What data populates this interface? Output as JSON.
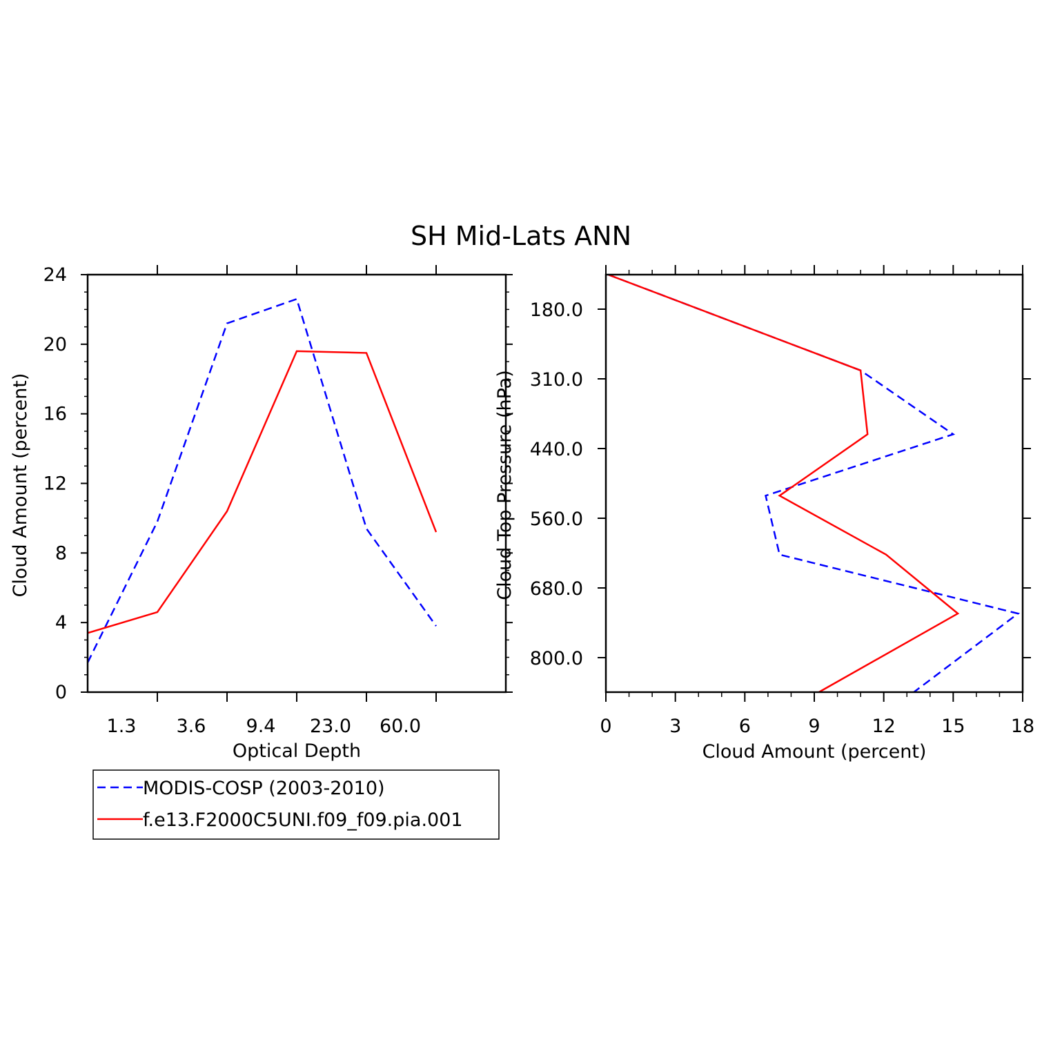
{
  "title": "SH Mid-Lats ANN",
  "colors": {
    "model": "#ff0000",
    "obs": "#0000ff",
    "axis": "#000000"
  },
  "legend": {
    "items": [
      {
        "label": "MODIS-COSP (2003-2010)",
        "series": "obs",
        "style": "dashed"
      },
      {
        "label": "f.e13.F2000C5UNI.f09_f09.pia.001",
        "series": "model",
        "style": "solid"
      }
    ]
  },
  "chart_data": [
    {
      "type": "line",
      "xlabel": "Optical Depth",
      "ylabel": "Cloud Amount (percent)",
      "xticks": [
        "1.3",
        "3.6",
        "9.4",
        "23.0",
        "60.0"
      ],
      "yticks": [
        "0",
        "4",
        "8",
        "12",
        "16",
        "20",
        "24"
      ],
      "ylim": [
        0,
        24
      ],
      "x_bins": 6,
      "series": [
        {
          "name": "MODIS-COSP (2003-2010)",
          "key": "obs",
          "values": [
            1.7,
            9.8,
            21.2,
            22.6,
            9.4,
            3.8
          ]
        },
        {
          "name": "f.e13.F2000C5UNI.f09_f09.pia.001",
          "key": "model",
          "values": [
            3.4,
            4.6,
            10.4,
            19.6,
            19.5,
            9.2
          ]
        }
      ]
    },
    {
      "type": "line",
      "xlabel": "Cloud Amount (percent)",
      "ylabel": "Cloud Top Pressure (hPa)",
      "xticks": [
        "0",
        "3",
        "6",
        "9",
        "12",
        "15",
        "18"
      ],
      "xlim": [
        0,
        18
      ],
      "yticks": [
        "180.0",
        "310.0",
        "440.0",
        "560.0",
        "680.0",
        "800.0"
      ],
      "pressure_levels": [
        50,
        245,
        375,
        500,
        620,
        740,
        900
      ],
      "series": [
        {
          "name": "MODIS-COSP (2003-2010)",
          "key": "obs",
          "values": [
            0.1,
            11.0,
            15.0,
            6.9,
            7.5,
            17.8,
            13.3
          ]
        },
        {
          "name": "f.e13.F2000C5UNI.f09_f09.pia.001",
          "key": "model",
          "values": [
            0.1,
            11.0,
            11.3,
            7.5,
            12.1,
            15.2,
            9.2
          ]
        }
      ]
    }
  ]
}
